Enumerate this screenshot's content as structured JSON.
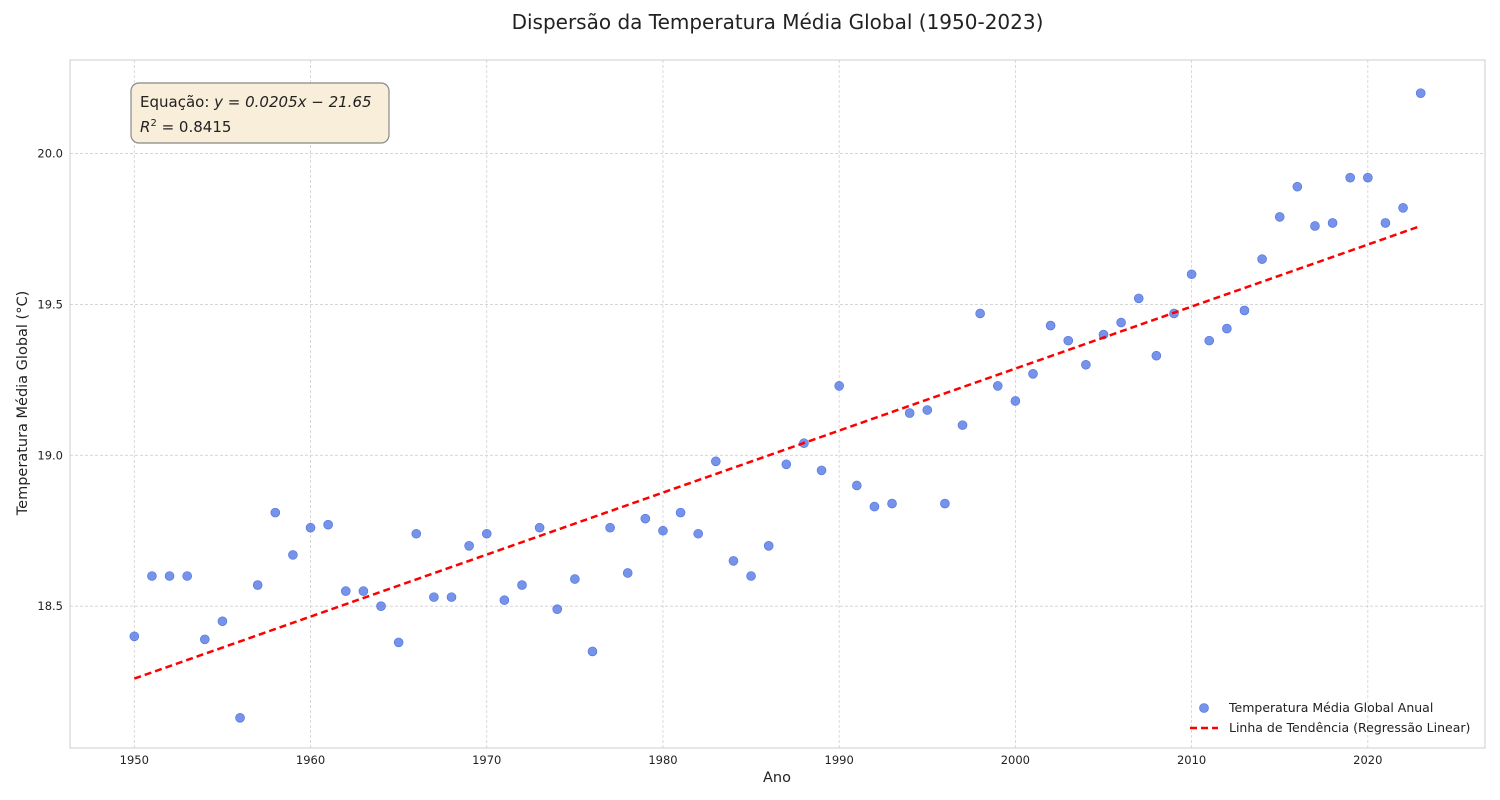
{
  "chart_data": {
    "type": "scatter",
    "title": "Dispersão da Temperatura Média Global (1950-2023)",
    "xlabel": "Ano",
    "ylabel": "Temperatura Média Global (°C)",
    "xlim": [
      1946.35,
      2026.65
    ],
    "ylim": [
      18.03,
      20.31
    ],
    "xticks": [
      1950,
      1960,
      1970,
      1980,
      1990,
      2000,
      2010,
      2020
    ],
    "yticks": [
      18.5,
      19.0,
      19.5,
      20.0
    ],
    "ytick_labels": [
      "18.5",
      "19.0",
      "19.5",
      "20.0"
    ],
    "grid": true,
    "legend_position": "bottom-right",
    "series": [
      {
        "name": "Temperatura Média Global Anual",
        "kind": "scatter",
        "color": "#4169e1",
        "x": [
          1950,
          1951,
          1952,
          1953,
          1954,
          1955,
          1956,
          1957,
          1958,
          1959,
          1960,
          1961,
          1962,
          1963,
          1964,
          1965,
          1966,
          1967,
          1968,
          1969,
          1970,
          1971,
          1972,
          1973,
          1974,
          1975,
          1976,
          1977,
          1978,
          1979,
          1980,
          1981,
          1982,
          1983,
          1984,
          1985,
          1986,
          1987,
          1988,
          1989,
          1990,
          1991,
          1992,
          1993,
          1994,
          1995,
          1996,
          1997,
          1998,
          1999,
          2000,
          2001,
          2002,
          2003,
          2004,
          2005,
          2006,
          2007,
          2008,
          2009,
          2010,
          2011,
          2012,
          2013,
          2014,
          2015,
          2016,
          2017,
          2018,
          2019,
          2020,
          2021,
          2022,
          2023
        ],
        "y": [
          18.4,
          18.6,
          18.6,
          18.6,
          18.39,
          18.45,
          18.13,
          18.57,
          18.81,
          18.67,
          18.76,
          18.77,
          18.55,
          18.55,
          18.5,
          18.38,
          18.74,
          18.53,
          18.53,
          18.7,
          18.74,
          18.52,
          18.57,
          18.76,
          18.49,
          18.59,
          18.35,
          18.76,
          18.61,
          18.79,
          18.75,
          18.81,
          18.74,
          18.98,
          18.65,
          18.6,
          18.7,
          18.97,
          19.04,
          18.95,
          19.23,
          18.9,
          18.83,
          18.84,
          19.14,
          19.15,
          18.84,
          19.1,
          19.47,
          19.23,
          19.18,
          19.27,
          19.43,
          19.38,
          19.3,
          19.4,
          19.44,
          19.52,
          19.33,
          19.47,
          19.6,
          19.38,
          19.42,
          19.48,
          19.65,
          19.79,
          19.89,
          19.76,
          19.77,
          19.92,
          19.92,
          19.77,
          19.82,
          20.2
        ]
      },
      {
        "name": "Linha de Tendência (Regressão Linear)",
        "kind": "line",
        "style": "dashed",
        "color": "#ff0000",
        "x": [
          1950,
          2023
        ],
        "y": [
          18.26,
          19.76
        ]
      }
    ],
    "annotation": {
      "line1_prefix": "Equação: ",
      "line1_math": "y = 0.0205x − 21.65",
      "line2_prefix": "R",
      "line2_sup": "2",
      "line2_rest": " = 0.8415",
      "box_fill": "#f9eed9",
      "box_stroke": "#888888"
    }
  }
}
